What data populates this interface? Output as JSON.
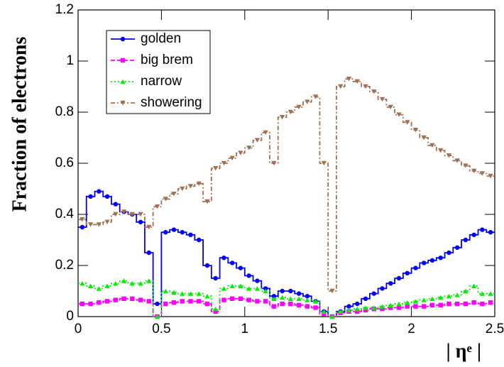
{
  "chart_data": {
    "type": "histogram",
    "xlabel": "| ηᵉ |",
    "ylabel": "Fraction of electrons",
    "bins": [
      0,
      0.05,
      0.1,
      0.15,
      0.2,
      0.25,
      0.3,
      0.35,
      0.4,
      0.45,
      0.5,
      0.55,
      0.6,
      0.65,
      0.7,
      0.75,
      0.8,
      0.85,
      0.9,
      0.95,
      1,
      1.05,
      1.1,
      1.15,
      1.2,
      1.25,
      1.3,
      1.35,
      1.4,
      1.45,
      1.5,
      1.55,
      1.6,
      1.65,
      1.7,
      1.75,
      1.8,
      1.85,
      1.9,
      1.95,
      2,
      2.05,
      2.1,
      2.15,
      2.2,
      2.25,
      2.3,
      2.35,
      2.4,
      2.45,
      2.5
    ],
    "series": [
      {
        "name": "golden",
        "color": "#0000ff",
        "marker": "circle",
        "dash": "none",
        "values": [
          0.35,
          0.47,
          0.49,
          0.47,
          0.44,
          0.41,
          0.4,
          0.37,
          0.25,
          0.05,
          0.33,
          0.34,
          0.33,
          0.32,
          0.3,
          0.2,
          0.15,
          0.23,
          0.21,
          0.19,
          0.16,
          0.14,
          0.11,
          0.08,
          0.1,
          0.1,
          0.09,
          0.08,
          0.06,
          0.02,
          0.0,
          0.02,
          0.04,
          0.05,
          0.07,
          0.09,
          0.11,
          0.13,
          0.15,
          0.17,
          0.19,
          0.21,
          0.22,
          0.23,
          0.25,
          0.27,
          0.3,
          0.32,
          0.34,
          0.33
        ]
      },
      {
        "name": "big brem",
        "color": "#ff00ff",
        "marker": "square",
        "dash": "6,3",
        "values": [
          0.05,
          0.05,
          0.055,
          0.06,
          0.065,
          0.07,
          0.07,
          0.065,
          0.06,
          0.0,
          0.05,
          0.055,
          0.06,
          0.06,
          0.06,
          0.05,
          0.02,
          0.065,
          0.07,
          0.07,
          0.065,
          0.06,
          0.06,
          0.04,
          0.05,
          0.05,
          0.045,
          0.04,
          0.035,
          0.01,
          0.0,
          0.015,
          0.02,
          0.02,
          0.025,
          0.03,
          0.03,
          0.035,
          0.035,
          0.04,
          0.04,
          0.04,
          0.045,
          0.045,
          0.05,
          0.05,
          0.05,
          0.055,
          0.05,
          0.055
        ]
      },
      {
        "name": "narrow",
        "color": "#00ee00",
        "marker": "triangle-up",
        "dash": "2,3",
        "values": [
          0.13,
          0.12,
          0.11,
          0.12,
          0.13,
          0.14,
          0.13,
          0.13,
          0.14,
          0.0,
          0.1,
          0.095,
          0.09,
          0.09,
          0.09,
          0.08,
          0.03,
          0.11,
          0.12,
          0.12,
          0.11,
          0.11,
          0.1,
          0.07,
          0.075,
          0.07,
          0.07,
          0.065,
          0.06,
          0.02,
          0.0,
          0.02,
          0.025,
          0.03,
          0.035,
          0.035,
          0.04,
          0.045,
          0.05,
          0.055,
          0.06,
          0.065,
          0.07,
          0.075,
          0.08,
          0.085,
          0.1,
          0.12,
          0.09,
          0.09
        ]
      },
      {
        "name": "showering",
        "color": "#a07050",
        "marker": "triangle-down",
        "dash": "6,3,2,3",
        "values": [
          0.38,
          0.36,
          0.36,
          0.37,
          0.4,
          0.41,
          0.4,
          0.4,
          0.35,
          0.43,
          0.46,
          0.48,
          0.5,
          0.51,
          0.52,
          0.45,
          0.58,
          0.6,
          0.62,
          0.64,
          0.66,
          0.69,
          0.72,
          0.6,
          0.78,
          0.8,
          0.82,
          0.84,
          0.86,
          0.6,
          0.1,
          0.9,
          0.93,
          0.92,
          0.9,
          0.88,
          0.85,
          0.82,
          0.79,
          0.76,
          0.73,
          0.7,
          0.67,
          0.65,
          0.63,
          0.61,
          0.59,
          0.57,
          0.56,
          0.55
        ]
      }
    ],
    "xlim": [
      0,
      2.5
    ],
    "ylim": [
      0,
      1.2
    ],
    "xticks": [
      0,
      0.5,
      1,
      1.5,
      2,
      2.5
    ],
    "yticks": [
      0,
      0.2,
      0.4,
      0.6,
      0.8,
      1,
      1.2
    ],
    "legend": "upper left"
  }
}
